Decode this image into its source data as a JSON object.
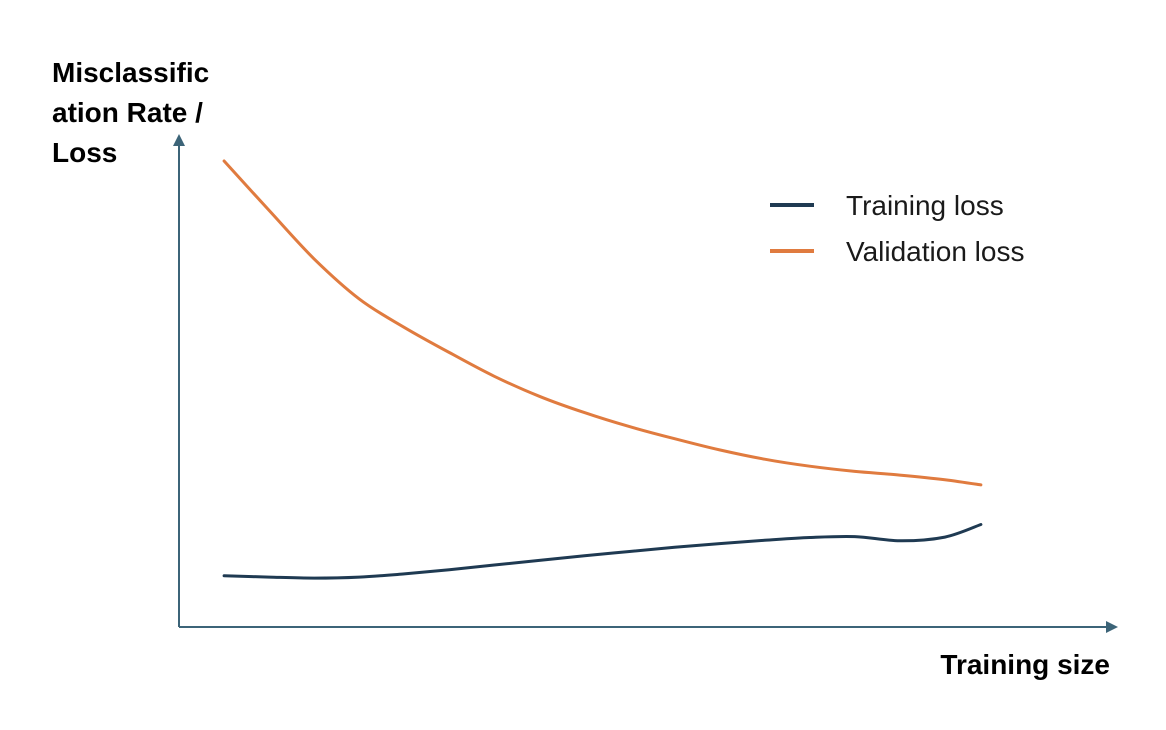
{
  "chart_data": {
    "type": "line",
    "title": "",
    "xlabel": "Training size",
    "ylabel": "Misclassification Rate / Loss",
    "ylabel_lines": [
      "Misclassific",
      "ation Rate /",
      "Loss"
    ],
    "grid": false,
    "legend_placement": "top-right",
    "axis_color": "#3c6478",
    "xlim": [
      0,
      10
    ],
    "ylim": [
      0,
      10
    ],
    "series": [
      {
        "name": "Training loss",
        "color": "#1f3a52",
        "x": [
          0.5,
          1.0,
          1.5,
          2.0,
          2.5,
          3.0,
          3.5,
          4.0,
          4.5,
          5.0,
          5.5,
          6.0,
          6.5,
          7.0,
          7.5,
          8.0,
          8.5,
          8.9
        ],
        "y": [
          1.1,
          1.07,
          1.05,
          1.07,
          1.14,
          1.23,
          1.33,
          1.43,
          1.53,
          1.62,
          1.71,
          1.79,
          1.86,
          1.92,
          1.94,
          1.85,
          1.93,
          2.2
        ]
      },
      {
        "name": "Validation loss",
        "color": "#e07b3f",
        "x": [
          0.5,
          1.0,
          1.5,
          2.0,
          2.5,
          3.0,
          3.5,
          4.0,
          4.5,
          5.0,
          5.5,
          6.0,
          6.5,
          7.0,
          7.5,
          8.0,
          8.5,
          8.9
        ],
        "y": [
          10.0,
          8.94,
          7.9,
          7.04,
          6.43,
          5.89,
          5.38,
          4.95,
          4.6,
          4.3,
          4.04,
          3.8,
          3.6,
          3.45,
          3.34,
          3.26,
          3.16,
          3.05
        ]
      }
    ]
  }
}
